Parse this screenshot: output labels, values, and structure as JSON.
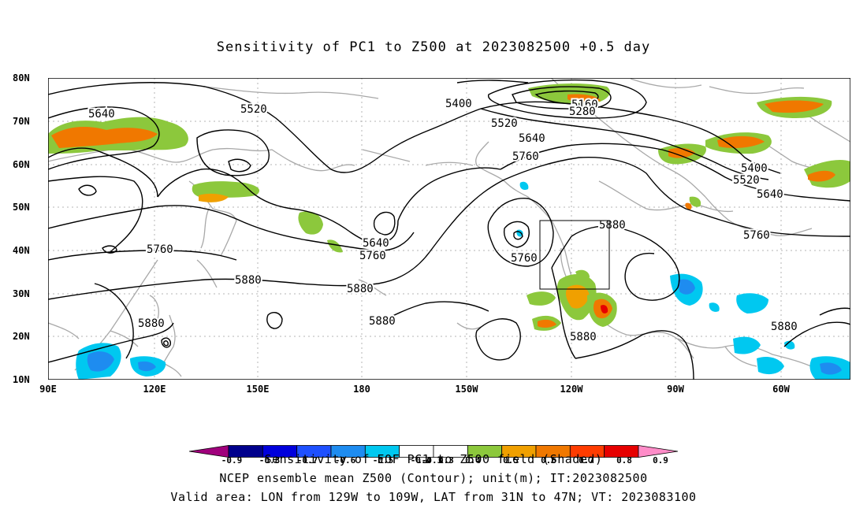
{
  "title": "Sensitivity of PC1 to Z500 at 2023082500 +0.5 day",
  "y_axis": {
    "ticks": [
      "80N",
      "70N",
      "60N",
      "50N",
      "40N",
      "30N",
      "20N",
      "10N"
    ]
  },
  "x_axis": {
    "ticks": [
      "90E",
      "120E",
      "150E",
      "180",
      "150W",
      "120W",
      "90W",
      "60W"
    ]
  },
  "contour_labels": [
    "5640",
    "5520",
    "5400",
    "5160",
    "5280",
    "5520",
    "5640",
    "5760",
    "5400",
    "5520",
    "5640",
    "5760",
    "5760",
    "5880",
    "5640",
    "5760",
    "5880",
    "5880",
    "5880",
    "5880",
    "5760",
    "5880",
    "5880"
  ],
  "valid_box": {
    "lon": [
      -129,
      -109
    ],
    "lat": [
      31,
      47
    ]
  },
  "colorbar": {
    "colors": [
      "#a0007c",
      "#00008c",
      "#0000dc",
      "#1e50ff",
      "#1e8cf0",
      "#00c8f0",
      "#ffffff",
      "#ffffff",
      "#8cc83c",
      "#f0a000",
      "#f07800",
      "#ff3c00",
      "#e60000",
      "#ff8cc8"
    ],
    "tick_labels": [
      "-0.9",
      "-0.8",
      "-0.7",
      "-0.6",
      "-0.5",
      "-0.4",
      "-0.3",
      "0.3",
      "0.4",
      "0.5",
      "0.6",
      "0.7",
      "0.8",
      "0.9"
    ]
  },
  "captions": {
    "line1": "Sensitivity of EOF PC1 to Z500 field (Shaded)",
    "line2": "NCEP ensemble mean Z500 (Contour); unit(m); IT:2023082500",
    "line3": "Valid area: LON from 129W to 109W, LAT from 31N to 47N; VT: 2023083100"
  }
}
